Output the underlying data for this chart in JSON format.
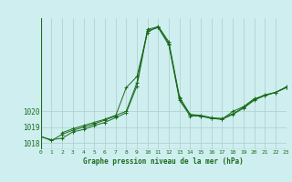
{
  "title": "Graphe pression niveau de la mer (hPa)",
  "background_color": "#ceeef0",
  "grid_color": "#b0cccc",
  "line_color": "#1a6b1a",
  "xlim": [
    0,
    23
  ],
  "ylim": [
    1017.6,
    1025.9
  ],
  "yticks": [
    1018,
    1019,
    1020
  ],
  "xticks": [
    0,
    1,
    2,
    3,
    4,
    5,
    6,
    7,
    8,
    9,
    10,
    11,
    12,
    13,
    14,
    15,
    16,
    17,
    18,
    19,
    20,
    21,
    22,
    23
  ],
  "series1_x": [
    0,
    1,
    2,
    3,
    4,
    5,
    6,
    7,
    8,
    9,
    10,
    11,
    12,
    13,
    14,
    15,
    16,
    17,
    18,
    19,
    20,
    21,
    22,
    23
  ],
  "series1_y": [
    1018.4,
    1018.2,
    1018.3,
    1018.7,
    1018.85,
    1019.1,
    1019.3,
    1019.6,
    1019.9,
    1021.6,
    1025.1,
    1025.3,
    1024.2,
    1020.7,
    1019.7,
    1019.7,
    1019.55,
    1019.5,
    1019.8,
    1020.2,
    1020.7,
    1021.0,
    1021.2,
    1021.5
  ],
  "series2_x": [
    0,
    1,
    2,
    3,
    4,
    5,
    6,
    7,
    8,
    9,
    10,
    11,
    12,
    13,
    14,
    15,
    16,
    17,
    18,
    19,
    20,
    21,
    22,
    23
  ],
  "series2_y": [
    1018.4,
    1018.15,
    1018.55,
    1018.8,
    1019.0,
    1019.2,
    1019.45,
    1019.7,
    1021.5,
    1022.2,
    1025.0,
    1025.4,
    1024.4,
    1020.9,
    1019.8,
    1019.7,
    1019.55,
    1019.5,
    1020.0,
    1020.3,
    1020.8,
    1021.0,
    1021.2,
    1021.5
  ],
  "series3_x": [
    2,
    3,
    4,
    5,
    6,
    7,
    8,
    9,
    10,
    11,
    12,
    13,
    14,
    15,
    16,
    17,
    18,
    19,
    20,
    21,
    22,
    23
  ],
  "series3_y": [
    1018.65,
    1018.9,
    1019.1,
    1019.3,
    1019.5,
    1019.75,
    1020.0,
    1021.8,
    1025.2,
    1025.35,
    1024.3,
    1020.8,
    1019.8,
    1019.75,
    1019.6,
    1019.55,
    1019.85,
    1020.25,
    1020.75,
    1021.05,
    1021.2,
    1021.55
  ],
  "title_fontsize": 5.5,
  "tick_fontsize": 4.5,
  "ytick_fontsize": 5.5
}
